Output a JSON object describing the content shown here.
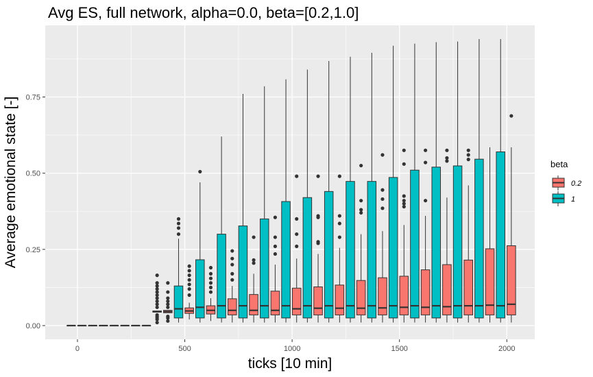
{
  "chart_data": {
    "type": "boxplot",
    "title": "Avg ES, full network, alpha=0.0, beta=[0.2,1.0]",
    "xlabel": "ticks [10 min]",
    "ylabel": "Average emotional state [-]",
    "xlim": [
      -150,
      2130
    ],
    "ylim": [
      -0.045,
      0.985
    ],
    "x_ticks": [
      0,
      500,
      1000,
      1500,
      2000
    ],
    "y_ticks": [
      0.0,
      0.25,
      0.5,
      0.75
    ],
    "y_tick_labels": [
      "0.00",
      "0.25",
      "0.50",
      "0.75"
    ],
    "group_spacing": 100,
    "box_halfwidth": 20,
    "legend": {
      "title": "beta",
      "entries": [
        "0.2",
        "1"
      ],
      "position": "right"
    },
    "colors": {
      "0.2": "#f8766d",
      "1": "#00bfc4",
      "panel": "#ebebeb",
      "grid": "#ffffff"
    },
    "series": [
      {
        "name": "0.2",
        "boxes": [
          {
            "x": -29,
            "q1": 0,
            "median": 0,
            "q3": 0,
            "lo": 0,
            "hi": 0,
            "outliers": []
          },
          {
            "x": 21,
            "q1": 0,
            "median": 0,
            "q3": 0,
            "lo": 0,
            "hi": 0,
            "outliers": []
          },
          {
            "x": 71,
            "q1": 0,
            "median": 0,
            "q3": 0,
            "lo": 0,
            "hi": 0,
            "outliers": []
          },
          {
            "x": 121,
            "q1": 0,
            "median": 0,
            "q3": 0,
            "lo": 0,
            "hi": 0,
            "outliers": []
          },
          {
            "x": 171,
            "q1": 0,
            "median": 0,
            "q3": 0,
            "lo": 0,
            "hi": 0,
            "outliers": []
          },
          {
            "x": 221,
            "q1": 0,
            "median": 0,
            "q3": 0,
            "lo": 0,
            "hi": 0,
            "outliers": []
          },
          {
            "x": 271,
            "q1": 0,
            "median": 0,
            "q3": 0,
            "lo": 0,
            "hi": 0,
            "outliers": []
          },
          {
            "x": 321,
            "q1": 0,
            "median": 0,
            "q3": 0,
            "lo": 0,
            "hi": 0,
            "outliers": []
          },
          {
            "x": 371,
            "q1": 0.044,
            "median": 0.046,
            "q3": 0.048,
            "lo": 0.044,
            "hi": 0.048,
            "outliers": [
              0.01,
              0.02,
              0.025,
              0.03,
              0.035,
              0.06,
              0.07,
              0.08,
              0.09,
              0.1,
              0.11,
              0.12,
              0.13,
              0.14,
              0.165
            ]
          },
          {
            "x": 421,
            "q1": 0.042,
            "median": 0.046,
            "q3": 0.05,
            "lo": 0.042,
            "hi": 0.05,
            "outliers": [
              0.015,
              0.025,
              0.03,
              0.06,
              0.07,
              0.08,
              0.09,
              0.11,
              0.14
            ]
          },
          {
            "x": 521,
            "q1": 0.04,
            "median": 0.048,
            "q3": 0.058,
            "lo": 0.02,
            "hi": 0.075,
            "outliers": [
              0.1,
              0.12,
              0.135,
              0.15,
              0.165,
              0.18,
              0.195
            ]
          },
          {
            "x": 621,
            "q1": 0.038,
            "median": 0.05,
            "q3": 0.065,
            "lo": 0.015,
            "hi": 0.09,
            "outliers": [
              0.11,
              0.125,
              0.14,
              0.155,
              0.17,
              0.19
            ]
          },
          {
            "x": 721,
            "q1": 0.035,
            "median": 0.05,
            "q3": 0.088,
            "lo": 0.01,
            "hi": 0.13,
            "outliers": [
              0.15,
              0.17,
              0.2,
              0.22,
              0.245
            ]
          },
          {
            "x": 821,
            "q1": 0.035,
            "median": 0.05,
            "q3": 0.102,
            "lo": 0.01,
            "hi": 0.17,
            "outliers": [
              0.205,
              0.215,
              0.29
            ]
          },
          {
            "x": 921,
            "q1": 0.035,
            "median": 0.05,
            "q3": 0.113,
            "lo": 0.01,
            "hi": 0.2,
            "outliers": [
              0.235,
              0.26,
              0.29,
              0.355
            ]
          },
          {
            "x": 1021,
            "q1": 0.035,
            "median": 0.055,
            "q3": 0.123,
            "lo": 0.01,
            "hi": 0.22,
            "outliers": [
              0.26,
              0.3,
              0.35,
              0.49
            ]
          },
          {
            "x": 1121,
            "q1": 0.035,
            "median": 0.057,
            "q3": 0.127,
            "lo": 0.01,
            "hi": 0.235,
            "outliers": [
              0.27,
              0.275,
              0.355,
              0.36,
              0.49
            ]
          },
          {
            "x": 1221,
            "q1": 0.035,
            "median": 0.057,
            "q3": 0.133,
            "lo": 0.01,
            "hi": 0.255,
            "outliers": [
              0.29,
              0.335,
              0.36,
              0.49
            ]
          },
          {
            "x": 1321,
            "q1": 0.035,
            "median": 0.057,
            "q3": 0.148,
            "lo": 0.01,
            "hi": 0.3,
            "outliers": [
              0.37,
              0.38,
              0.41,
              0.525
            ]
          },
          {
            "x": 1421,
            "q1": 0.035,
            "median": 0.058,
            "q3": 0.157,
            "lo": 0.01,
            "hi": 0.31,
            "outliers": [
              0.385,
              0.415,
              0.445,
              0.56
            ]
          },
          {
            "x": 1521,
            "q1": 0.035,
            "median": 0.06,
            "q3": 0.162,
            "lo": 0.01,
            "hi": 0.33,
            "outliers": [
              0.39,
              0.4,
              0.41,
              0.425,
              0.53,
              0.575
            ]
          },
          {
            "x": 1621,
            "q1": 0.035,
            "median": 0.06,
            "q3": 0.183,
            "lo": 0.01,
            "hi": 0.36,
            "outliers": [
              0.41,
              0.535,
              0.575
            ]
          },
          {
            "x": 1721,
            "q1": 0.035,
            "median": 0.062,
            "q3": 0.2,
            "lo": 0.01,
            "hi": 0.42,
            "outliers": [
              0.54,
              0.55,
              0.575
            ]
          },
          {
            "x": 1821,
            "q1": 0.035,
            "median": 0.065,
            "q3": 0.215,
            "lo": 0.01,
            "hi": 0.46,
            "outliers": [
              0.545,
              0.56,
              0.575
            ]
          },
          {
            "x": 1921,
            "q1": 0.035,
            "median": 0.067,
            "q3": 0.252,
            "lo": 0.01,
            "hi": 0.585,
            "outliers": []
          },
          {
            "x": 2021,
            "q1": 0.035,
            "median": 0.07,
            "q3": 0.262,
            "lo": 0.01,
            "hi": 0.585,
            "outliers": [
              0.688
            ]
          }
        ]
      },
      {
        "name": "1",
        "boxes": [
          {
            "x": 471,
            "q1": 0.025,
            "median": 0.055,
            "q3": 0.13,
            "lo": 0.01,
            "hi": 0.285,
            "outliers": [
              0.3,
              0.32,
              0.335,
              0.35
            ]
          },
          {
            "x": 571,
            "q1": 0.025,
            "median": 0.06,
            "q3": 0.216,
            "lo": 0.01,
            "hi": 0.47,
            "outliers": [
              0.505
            ]
          },
          {
            "x": 671,
            "q1": 0.025,
            "median": 0.065,
            "q3": 0.3,
            "lo": 0.01,
            "hi": 0.62,
            "outliers": []
          },
          {
            "x": 771,
            "q1": 0.025,
            "median": 0.065,
            "q3": 0.327,
            "lo": 0.01,
            "hi": 0.76,
            "outliers": []
          },
          {
            "x": 871,
            "q1": 0.025,
            "median": 0.065,
            "q3": 0.35,
            "lo": 0.01,
            "hi": 0.785,
            "outliers": []
          },
          {
            "x": 971,
            "q1": 0.025,
            "median": 0.065,
            "q3": 0.407,
            "lo": 0.01,
            "hi": 0.808,
            "outliers": []
          },
          {
            "x": 1071,
            "q1": 0.025,
            "median": 0.065,
            "q3": 0.42,
            "lo": 0.01,
            "hi": 0.84,
            "outliers": []
          },
          {
            "x": 1171,
            "q1": 0.025,
            "median": 0.065,
            "q3": 0.44,
            "lo": 0.01,
            "hi": 0.868,
            "outliers": []
          },
          {
            "x": 1271,
            "q1": 0.025,
            "median": 0.065,
            "q3": 0.473,
            "lo": 0.01,
            "hi": 0.882,
            "outliers": []
          },
          {
            "x": 1371,
            "q1": 0.025,
            "median": 0.065,
            "q3": 0.473,
            "lo": 0.01,
            "hi": 0.895,
            "outliers": []
          },
          {
            "x": 1471,
            "q1": 0.025,
            "median": 0.065,
            "q3": 0.486,
            "lo": 0.01,
            "hi": 0.918,
            "outliers": []
          },
          {
            "x": 1571,
            "q1": 0.025,
            "median": 0.065,
            "q3": 0.51,
            "lo": 0.01,
            "hi": 0.925,
            "outliers": []
          },
          {
            "x": 1671,
            "q1": 0.025,
            "median": 0.065,
            "q3": 0.52,
            "lo": 0.01,
            "hi": 0.93,
            "outliers": []
          },
          {
            "x": 1771,
            "q1": 0.025,
            "median": 0.065,
            "q3": 0.524,
            "lo": 0.01,
            "hi": 0.932,
            "outliers": []
          },
          {
            "x": 1871,
            "q1": 0.025,
            "median": 0.065,
            "q3": 0.546,
            "lo": 0.01,
            "hi": 0.94,
            "outliers": []
          },
          {
            "x": 1971,
            "q1": 0.025,
            "median": 0.065,
            "q3": 0.57,
            "lo": 0.01,
            "hi": 0.94,
            "outliers": []
          }
        ]
      }
    ]
  }
}
